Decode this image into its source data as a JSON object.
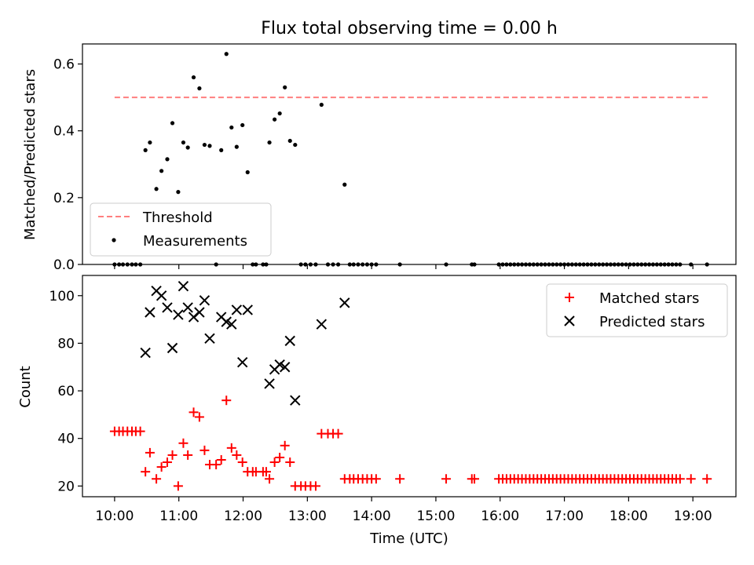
{
  "title": "Flux total observing time = 0.00 h",
  "x_axis": {
    "label": "Time (UTC)",
    "range_hours": [
      9.5,
      19.67
    ],
    "ticks": [
      {
        "value": 10,
        "label": "10:00"
      },
      {
        "value": 11,
        "label": "11:00"
      },
      {
        "value": 12,
        "label": "12:00"
      },
      {
        "value": 13,
        "label": "13:00"
      },
      {
        "value": 14,
        "label": "14:00"
      },
      {
        "value": 15,
        "label": "15:00"
      },
      {
        "value": 16,
        "label": "16:00"
      },
      {
        "value": 17,
        "label": "17:00"
      },
      {
        "value": 18,
        "label": "18:00"
      },
      {
        "value": 19,
        "label": "19:00"
      }
    ]
  },
  "colors": {
    "threshold": "#ff7f7f",
    "measurements": "#000000",
    "matched": "#ff0000",
    "predicted": "#000000"
  },
  "chart_data": [
    {
      "type": "scatter",
      "ylabel": "Matched/Predicted stars",
      "ylim": [
        0,
        0.66
      ],
      "yticks": [
        {
          "value": 0.0,
          "label": "0.0"
        },
        {
          "value": 0.2,
          "label": "0.2"
        },
        {
          "value": 0.4,
          "label": "0.4"
        },
        {
          "value": 0.6,
          "label": "0.6"
        }
      ],
      "legend": {
        "position": "lower-left",
        "entries": [
          "Threshold",
          "Measurements"
        ]
      },
      "threshold": {
        "name": "Threshold",
        "value": 0.5,
        "x_range": [
          10.0,
          19.25
        ]
      },
      "measurements": {
        "name": "Measurements",
        "points": [
          [
            10.0,
            0
          ],
          [
            10.07,
            0
          ],
          [
            10.13,
            0
          ],
          [
            10.2,
            0
          ],
          [
            10.27,
            0
          ],
          [
            10.33,
            0
          ],
          [
            10.4,
            0
          ],
          [
            10.48,
            0.342
          ],
          [
            10.55,
            0.365
          ],
          [
            10.65,
            0.226
          ],
          [
            10.73,
            0.28
          ],
          [
            10.82,
            0.315
          ],
          [
            10.9,
            0.423
          ],
          [
            10.99,
            0.217
          ],
          [
            11.07,
            0.365
          ],
          [
            11.14,
            0.35
          ],
          [
            11.23,
            0.56
          ],
          [
            11.32,
            0.527
          ],
          [
            11.4,
            0.358
          ],
          [
            11.48,
            0.355
          ],
          [
            11.58,
            0
          ],
          [
            11.66,
            0.342
          ],
          [
            11.74,
            0.63
          ],
          [
            11.82,
            0.41
          ],
          [
            11.9,
            0.352
          ],
          [
            11.99,
            0.417
          ],
          [
            12.07,
            0.276
          ],
          [
            12.15,
            0
          ],
          [
            12.2,
            0
          ],
          [
            12.31,
            0
          ],
          [
            12.36,
            0
          ],
          [
            12.41,
            0.365
          ],
          [
            12.49,
            0.434
          ],
          [
            12.57,
            0.452
          ],
          [
            12.65,
            0.53
          ],
          [
            12.73,
            0.37
          ],
          [
            12.81,
            0.358
          ],
          [
            12.9,
            0
          ],
          [
            12.97,
            0
          ],
          [
            13.05,
            0
          ],
          [
            13.13,
            0
          ],
          [
            13.22,
            0.478
          ],
          [
            13.32,
            0
          ],
          [
            13.4,
            0
          ],
          [
            13.48,
            0
          ],
          [
            13.58,
            0.239
          ],
          [
            13.66,
            0
          ],
          [
            13.72,
            0
          ],
          [
            13.79,
            0
          ],
          [
            13.86,
            0
          ],
          [
            13.93,
            0
          ],
          [
            14.0,
            0
          ],
          [
            14.07,
            0
          ],
          [
            14.44,
            0
          ],
          [
            15.16,
            0
          ],
          [
            15.56,
            0
          ],
          [
            15.6,
            0
          ],
          [
            15.98,
            0
          ],
          [
            16.04,
            0
          ],
          [
            16.1,
            0
          ],
          [
            16.16,
            0
          ],
          [
            16.22,
            0
          ],
          [
            16.28,
            0
          ],
          [
            16.34,
            0
          ],
          [
            16.4,
            0
          ],
          [
            16.46,
            0
          ],
          [
            16.52,
            0
          ],
          [
            16.58,
            0
          ],
          [
            16.64,
            0
          ],
          [
            16.7,
            0
          ],
          [
            16.76,
            0
          ],
          [
            16.82,
            0
          ],
          [
            16.88,
            0
          ],
          [
            16.94,
            0
          ],
          [
            17.0,
            0
          ],
          [
            17.06,
            0
          ],
          [
            17.12,
            0
          ],
          [
            17.18,
            0
          ],
          [
            17.24,
            0
          ],
          [
            17.3,
            0
          ],
          [
            17.36,
            0
          ],
          [
            17.42,
            0
          ],
          [
            17.48,
            0
          ],
          [
            17.54,
            0
          ],
          [
            17.6,
            0
          ],
          [
            17.66,
            0
          ],
          [
            17.72,
            0
          ],
          [
            17.78,
            0
          ],
          [
            17.84,
            0
          ],
          [
            17.9,
            0
          ],
          [
            17.96,
            0
          ],
          [
            18.02,
            0
          ],
          [
            18.08,
            0
          ],
          [
            18.14,
            0
          ],
          [
            18.2,
            0
          ],
          [
            18.26,
            0
          ],
          [
            18.32,
            0
          ],
          [
            18.38,
            0
          ],
          [
            18.44,
            0
          ],
          [
            18.5,
            0
          ],
          [
            18.56,
            0
          ],
          [
            18.62,
            0
          ],
          [
            18.68,
            0
          ],
          [
            18.74,
            0
          ],
          [
            18.8,
            0
          ],
          [
            18.97,
            0
          ],
          [
            19.22,
            0
          ]
        ]
      }
    },
    {
      "type": "scatter",
      "ylabel": "Count",
      "ylim": [
        15.5,
        108.5
      ],
      "yticks": [
        {
          "value": 20,
          "label": "20"
        },
        {
          "value": 40,
          "label": "40"
        },
        {
          "value": 60,
          "label": "60"
        },
        {
          "value": 80,
          "label": "80"
        },
        {
          "value": 100,
          "label": "100"
        }
      ],
      "legend": {
        "position": "top-right",
        "entries": [
          "Matched stars",
          "Predicted stars"
        ]
      },
      "series": [
        {
          "name": "Matched stars",
          "marker": "+",
          "points": [
            [
              10.0,
              43
            ],
            [
              10.07,
              43
            ],
            [
              10.13,
              43
            ],
            [
              10.2,
              43
            ],
            [
              10.27,
              43
            ],
            [
              10.33,
              43
            ],
            [
              10.4,
              43
            ],
            [
              10.48,
              26
            ],
            [
              10.55,
              34
            ],
            [
              10.65,
              23
            ],
            [
              10.73,
              28
            ],
            [
              10.82,
              30
            ],
            [
              10.9,
              33
            ],
            [
              10.99,
              20
            ],
            [
              11.07,
              38
            ],
            [
              11.14,
              33
            ],
            [
              11.23,
              51
            ],
            [
              11.32,
              49
            ],
            [
              11.4,
              35
            ],
            [
              11.48,
              29
            ],
            [
              11.58,
              29
            ],
            [
              11.66,
              31
            ],
            [
              11.74,
              56
            ],
            [
              11.82,
              36
            ],
            [
              11.9,
              33
            ],
            [
              11.99,
              30
            ],
            [
              12.07,
              26
            ],
            [
              12.15,
              26
            ],
            [
              12.2,
              26
            ],
            [
              12.31,
              26
            ],
            [
              12.36,
              26
            ],
            [
              12.41,
              23
            ],
            [
              12.49,
              30
            ],
            [
              12.57,
              32
            ],
            [
              12.65,
              37
            ],
            [
              12.73,
              30
            ],
            [
              12.81,
              20
            ],
            [
              12.9,
              20
            ],
            [
              12.97,
              20
            ],
            [
              13.05,
              20
            ],
            [
              13.13,
              20
            ],
            [
              13.22,
              42
            ],
            [
              13.32,
              42
            ],
            [
              13.4,
              42
            ],
            [
              13.48,
              42
            ],
            [
              13.58,
              23
            ],
            [
              13.66,
              23
            ],
            [
              13.72,
              23
            ],
            [
              13.79,
              23
            ],
            [
              13.86,
              23
            ],
            [
              13.93,
              23
            ],
            [
              14.0,
              23
            ],
            [
              14.07,
              23
            ],
            [
              14.44,
              23
            ],
            [
              15.16,
              23
            ],
            [
              15.56,
              23
            ],
            [
              15.6,
              23
            ],
            [
              15.98,
              23
            ],
            [
              16.04,
              23
            ],
            [
              16.1,
              23
            ],
            [
              16.16,
              23
            ],
            [
              16.22,
              23
            ],
            [
              16.28,
              23
            ],
            [
              16.34,
              23
            ],
            [
              16.4,
              23
            ],
            [
              16.46,
              23
            ],
            [
              16.52,
              23
            ],
            [
              16.58,
              23
            ],
            [
              16.64,
              23
            ],
            [
              16.7,
              23
            ],
            [
              16.76,
              23
            ],
            [
              16.82,
              23
            ],
            [
              16.88,
              23
            ],
            [
              16.94,
              23
            ],
            [
              17.0,
              23
            ],
            [
              17.06,
              23
            ],
            [
              17.12,
              23
            ],
            [
              17.18,
              23
            ],
            [
              17.24,
              23
            ],
            [
              17.3,
              23
            ],
            [
              17.36,
              23
            ],
            [
              17.42,
              23
            ],
            [
              17.48,
              23
            ],
            [
              17.54,
              23
            ],
            [
              17.6,
              23
            ],
            [
              17.66,
              23
            ],
            [
              17.72,
              23
            ],
            [
              17.78,
              23
            ],
            [
              17.84,
              23
            ],
            [
              17.9,
              23
            ],
            [
              17.96,
              23
            ],
            [
              18.02,
              23
            ],
            [
              18.08,
              23
            ],
            [
              18.14,
              23
            ],
            [
              18.2,
              23
            ],
            [
              18.26,
              23
            ],
            [
              18.32,
              23
            ],
            [
              18.38,
              23
            ],
            [
              18.44,
              23
            ],
            [
              18.5,
              23
            ],
            [
              18.56,
              23
            ],
            [
              18.62,
              23
            ],
            [
              18.68,
              23
            ],
            [
              18.74,
              23
            ],
            [
              18.8,
              23
            ],
            [
              18.97,
              23
            ],
            [
              19.22,
              23
            ]
          ]
        },
        {
          "name": "Predicted stars",
          "marker": "x",
          "points": [
            [
              10.48,
              76
            ],
            [
              10.55,
              93
            ],
            [
              10.65,
              102
            ],
            [
              10.73,
              100
            ],
            [
              10.82,
              95
            ],
            [
              10.9,
              78
            ],
            [
              10.99,
              92
            ],
            [
              11.07,
              104
            ],
            [
              11.14,
              95
            ],
            [
              11.23,
              91
            ],
            [
              11.32,
              93
            ],
            [
              11.4,
              98
            ],
            [
              11.48,
              82
            ],
            [
              11.66,
              91
            ],
            [
              11.74,
              89
            ],
            [
              11.82,
              88
            ],
            [
              11.9,
              94
            ],
            [
              11.99,
              72
            ],
            [
              12.07,
              94
            ],
            [
              12.41,
              63
            ],
            [
              12.49,
              69
            ],
            [
              12.57,
              71
            ],
            [
              12.65,
              70
            ],
            [
              12.73,
              81
            ],
            [
              12.81,
              56
            ],
            [
              13.22,
              88
            ],
            [
              13.58,
              97
            ]
          ]
        }
      ]
    }
  ]
}
